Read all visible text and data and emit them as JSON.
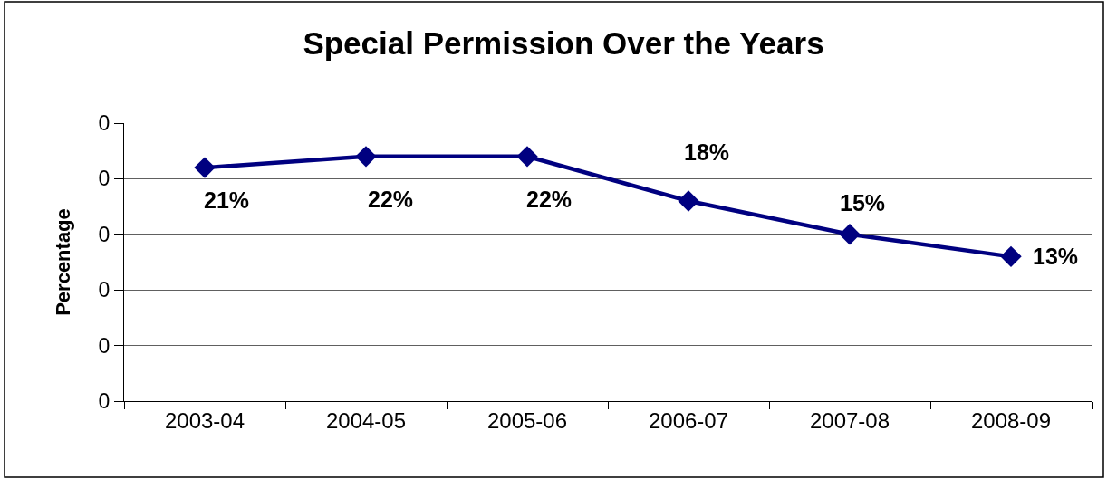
{
  "chart_data": {
    "type": "line",
    "title": "Special Permission Over the Years",
    "ylabel": "Percentage",
    "categories": [
      "2003-04",
      "2004-05",
      "2005-06",
      "2006-07",
      "2007-08",
      "2008-09"
    ],
    "series": [
      {
        "color": "#000080",
        "values": [
          0.21,
          0.22,
          0.22,
          0.18,
          0.15,
          0.13
        ],
        "value_labels": [
          "21%",
          "22%",
          "22%",
          "18%",
          "15%",
          "13%"
        ]
      }
    ],
    "ylim": [
      0,
      0.25
    ],
    "yticks": [
      {
        "value": 0,
        "label": "0"
      },
      {
        "value": 0.05,
        "label": "0"
      },
      {
        "value": 0.1,
        "label": "0"
      },
      {
        "value": 0.15,
        "label": "0"
      },
      {
        "value": 0.2,
        "label": "0"
      },
      {
        "value": 0.25,
        "label": "0"
      }
    ],
    "grid": "y",
    "marker": "diamond",
    "line_style": "solid"
  }
}
